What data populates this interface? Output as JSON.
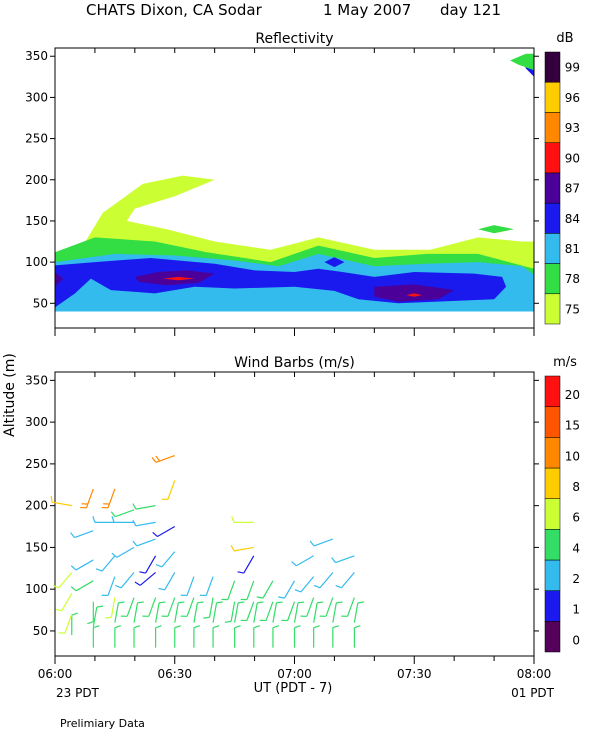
{
  "header": {
    "site": "CHATS Dixon, CA  Sodar",
    "date": "1 May 2007",
    "day": "day 121"
  },
  "footer": {
    "x_axis_label": "UT  (PDT - 7)",
    "left_time_label": "23 PDT",
    "right_time_label": "01 PDT",
    "note": "Prelimiary Data"
  },
  "y_axis_label": "Altitude (m)",
  "chart_data": [
    {
      "type": "heatmap",
      "title": "Reflectivity",
      "xlabel": "",
      "ylabel": "Altitude (m)",
      "ylim": [
        20,
        360
      ],
      "yticks": [
        50,
        100,
        150,
        200,
        250,
        300,
        350
      ],
      "colorbar_unit": "dB",
      "colorbar_levels": [
        75,
        78,
        81,
        84,
        87,
        90,
        93,
        96,
        99
      ],
      "colorbar_colors": [
        "#ccff33",
        "#33dd44",
        "#33bbee",
        "#1a1aee",
        "#4a0099",
        "#ff1111",
        "#ff8800",
        "#ffcc00",
        "#33003d"
      ],
      "regions": [
        {
          "level": 75,
          "points": [
            [
              0.0,
              105
            ],
            [
              0.7,
              120
            ],
            [
              1.2,
              160
            ],
            [
              2.2,
              195
            ],
            [
              3.2,
              205
            ],
            [
              4.0,
              200
            ],
            [
              3.0,
              180
            ],
            [
              2.0,
              165
            ],
            [
              1.8,
              150
            ],
            [
              2.8,
              140
            ],
            [
              4.0,
              125
            ],
            [
              5.4,
              115
            ],
            [
              6.6,
              130
            ],
            [
              8.0,
              115
            ],
            [
              9.4,
              115
            ],
            [
              10.6,
              130
            ],
            [
              11.7,
              125
            ],
            [
              12.0,
              125
            ],
            [
              12.0,
              70
            ],
            [
              10.6,
              80
            ],
            [
              8.0,
              85
            ],
            [
              5.4,
              90
            ],
            [
              3.0,
              95
            ],
            [
              0.0,
              95
            ]
          ]
        },
        {
          "level": 78,
          "points": [
            [
              0.0,
              112
            ],
            [
              1.0,
              130
            ],
            [
              2.5,
              125
            ],
            [
              3.8,
              112
            ],
            [
              5.4,
              100
            ],
            [
              6.6,
              120
            ],
            [
              8.0,
              105
            ],
            [
              9.3,
              110
            ],
            [
              10.6,
              110
            ],
            [
              12.0,
              92
            ],
            [
              12.0,
              45
            ],
            [
              10.5,
              48
            ],
            [
              8.5,
              45
            ],
            [
              7.2,
              52
            ],
            [
              5.4,
              62
            ],
            [
              3.5,
              75
            ],
            [
              1.5,
              88
            ],
            [
              0.0,
              90
            ]
          ]
        },
        {
          "level": 81,
          "points": [
            [
              0.0,
              100
            ],
            [
              1.5,
              110
            ],
            [
              3.0,
              108
            ],
            [
              4.5,
              102
            ],
            [
              5.6,
              95
            ],
            [
              6.6,
              110
            ],
            [
              8.0,
              95
            ],
            [
              9.3,
              98
            ],
            [
              10.6,
              100
            ],
            [
              11.7,
              95
            ],
            [
              12.0,
              85
            ],
            [
              12.0,
              40
            ],
            [
              0.0,
              40
            ]
          ]
        },
        {
          "level": 84,
          "points": [
            [
              0.0,
              96
            ],
            [
              1.0,
              100
            ],
            [
              2.4,
              105
            ],
            [
              4.0,
              98
            ],
            [
              5.0,
              90
            ],
            [
              6.0,
              88
            ],
            [
              6.6,
              92
            ],
            [
              7.2,
              88
            ],
            [
              8.0,
              82
            ],
            [
              9.0,
              88
            ],
            [
              10.5,
              86
            ],
            [
              11.2,
              82
            ],
            [
              11.3,
              70
            ],
            [
              11.0,
              55
            ],
            [
              8.6,
              50
            ],
            [
              7.6,
              55
            ],
            [
              7.0,
              65
            ],
            [
              6.0,
              70
            ],
            [
              4.5,
              68
            ],
            [
              3.5,
              70
            ],
            [
              2.5,
              62
            ],
            [
              1.4,
              66
            ],
            [
              0.9,
              80
            ],
            [
              0.5,
              62
            ],
            [
              0.0,
              45
            ]
          ]
        },
        {
          "level": 87,
          "points": [
            [
              2.0,
              82
            ],
            [
              2.6,
              88
            ],
            [
              3.3,
              90
            ],
            [
              4.0,
              86
            ],
            [
              3.6,
              75
            ],
            [
              2.8,
              72
            ],
            [
              2.1,
              76
            ]
          ]
        },
        {
          "level": 87,
          "points": [
            [
              0.0,
              88
            ],
            [
              0.2,
              80
            ],
            [
              0.0,
              70
            ]
          ]
        },
        {
          "level": 87,
          "points": [
            [
              8.0,
              70
            ],
            [
              9.0,
              73
            ],
            [
              10.0,
              66
            ],
            [
              9.6,
              55
            ],
            [
              8.6,
              52
            ],
            [
              8.0,
              58
            ]
          ]
        },
        {
          "level": 84,
          "points": [
            [
              6.75,
              100
            ],
            [
              7.0,
              106
            ],
            [
              7.25,
              100
            ],
            [
              7.0,
              94
            ]
          ]
        },
        {
          "level": 78,
          "points": [
            [
              10.6,
              140
            ],
            [
              11.0,
              145
            ],
            [
              11.5,
              140
            ],
            [
              11.0,
              135
            ]
          ]
        },
        {
          "level": 87,
          "points": [
            [
              11.9,
              340
            ],
            [
              12.0,
              345
            ],
            [
              12.0,
              335
            ]
          ]
        },
        {
          "level": 84,
          "points": [
            [
              11.7,
              345
            ],
            [
              12.0,
              352
            ],
            [
              12.0,
              325
            ],
            [
              11.8,
              335
            ]
          ]
        },
        {
          "level": 78,
          "points": [
            [
              11.4,
              345
            ],
            [
              11.8,
              353
            ],
            [
              12.0,
              353
            ],
            [
              12.0,
              333
            ],
            [
              11.6,
              340
            ]
          ]
        },
        {
          "level": 90,
          "points": [
            [
              2.7,
              80
            ],
            [
              3.1,
              82
            ],
            [
              3.5,
              80
            ],
            [
              3.1,
              78
            ]
          ]
        },
        {
          "level": 90,
          "points": [
            [
              8.8,
              60
            ],
            [
              9.0,
              62
            ],
            [
              9.2,
              60
            ],
            [
              9.0,
              58
            ]
          ]
        }
      ]
    },
    {
      "type": "scatter",
      "title": "Wind Barbs (m/s)",
      "xlabel": "UT  (PDT - 7)",
      "ylabel": "Altitude (m)",
      "ylim": [
        20,
        360
      ],
      "yticks": [
        50,
        100,
        150,
        200,
        250,
        300,
        350
      ],
      "xlim": [
        6.0,
        8.0
      ],
      "xtick_labels": [
        "06:00",
        "06:30",
        "07:00",
        "07:30",
        "08:00"
      ],
      "colorbar_unit": "m/s",
      "colorbar_levels": [
        0,
        1,
        2,
        4,
        6,
        8,
        10,
        15,
        20
      ],
      "colorbar_colors": [
        "#55005a",
        "#1a1aee",
        "#33bbee",
        "#33dd66",
        "#ccff33",
        "#ffcc00",
        "#ff8800",
        "#ff5500",
        "#ff1111"
      ],
      "barbs": [
        {
          "t": 6.07,
          "z": 45,
          "speed": 5,
          "dir": 0
        },
        {
          "t": 6.07,
          "z": 70,
          "speed": 6,
          "dir": 200
        },
        {
          "t": 6.07,
          "z": 95,
          "speed": 6,
          "dir": 210
        },
        {
          "t": 6.07,
          "z": 120,
          "speed": 6,
          "dir": 220
        },
        {
          "t": 6.07,
          "z": 200,
          "speed": 8,
          "dir": 280
        },
        {
          "t": 6.16,
          "z": 30,
          "speed": 5,
          "dir": 0
        },
        {
          "t": 6.16,
          "z": 55,
          "speed": 5,
          "dir": 10
        },
        {
          "t": 6.16,
          "z": 85,
          "speed": 5,
          "dir": 180
        },
        {
          "t": 6.16,
          "z": 110,
          "speed": 4,
          "dir": 240
        },
        {
          "t": 6.16,
          "z": 135,
          "speed": 3,
          "dir": 240
        },
        {
          "t": 6.16,
          "z": 170,
          "speed": 3,
          "dir": 250
        },
        {
          "t": 6.16,
          "z": 220,
          "speed": 12,
          "dir": 200
        },
        {
          "t": 6.25,
          "z": 30,
          "speed": 5,
          "dir": 0
        },
        {
          "t": 6.25,
          "z": 60,
          "speed": 5,
          "dir": 10
        },
        {
          "t": 6.25,
          "z": 90,
          "speed": 6,
          "dir": 190
        },
        {
          "t": 6.25,
          "z": 115,
          "speed": 3,
          "dir": 200
        },
        {
          "t": 6.25,
          "z": 140,
          "speed": 3,
          "dir": 220
        },
        {
          "t": 6.25,
          "z": 180,
          "speed": 3,
          "dir": 270
        },
        {
          "t": 6.25,
          "z": 220,
          "speed": 12,
          "dir": 200
        },
        {
          "t": 6.33,
          "z": 30,
          "speed": 5,
          "dir": 0
        },
        {
          "t": 6.33,
          "z": 60,
          "speed": 5,
          "dir": 10
        },
        {
          "t": 6.33,
          "z": 90,
          "speed": 4,
          "dir": 200
        },
        {
          "t": 6.33,
          "z": 120,
          "speed": 3,
          "dir": 220
        },
        {
          "t": 6.33,
          "z": 150,
          "speed": 3,
          "dir": 240
        },
        {
          "t": 6.33,
          "z": 180,
          "speed": 3,
          "dir": 270
        },
        {
          "t": 6.33,
          "z": 195,
          "speed": 4,
          "dir": 250
        },
        {
          "t": 6.42,
          "z": 30,
          "speed": 5,
          "dir": 0
        },
        {
          "t": 6.42,
          "z": 60,
          "speed": 5,
          "dir": 10
        },
        {
          "t": 6.42,
          "z": 90,
          "speed": 4,
          "dir": 200
        },
        {
          "t": 6.42,
          "z": 120,
          "speed": 1,
          "dir": 230
        },
        {
          "t": 6.42,
          "z": 140,
          "speed": 1,
          "dir": 210
        },
        {
          "t": 6.42,
          "z": 160,
          "speed": 3,
          "dir": 250
        },
        {
          "t": 6.42,
          "z": 180,
          "speed": 3,
          "dir": 260
        },
        {
          "t": 6.42,
          "z": 200,
          "speed": 4,
          "dir": 260
        },
        {
          "t": 6.5,
          "z": 30,
          "speed": 5,
          "dir": 0
        },
        {
          "t": 6.5,
          "z": 60,
          "speed": 5,
          "dir": 10
        },
        {
          "t": 6.5,
          "z": 90,
          "speed": 4,
          "dir": 200
        },
        {
          "t": 6.5,
          "z": 120,
          "speed": 3,
          "dir": 210
        },
        {
          "t": 6.5,
          "z": 145,
          "speed": 3,
          "dir": 220
        },
        {
          "t": 6.5,
          "z": 175,
          "speed": 1,
          "dir": 240
        },
        {
          "t": 6.5,
          "z": 230,
          "speed": 8,
          "dir": 200
        },
        {
          "t": 6.5,
          "z": 260,
          "speed": 12,
          "dir": 250
        },
        {
          "t": 6.58,
          "z": 30,
          "speed": 5,
          "dir": 0
        },
        {
          "t": 6.58,
          "z": 60,
          "speed": 5,
          "dir": 10
        },
        {
          "t": 6.58,
          "z": 90,
          "speed": 4,
          "dir": 200
        },
        {
          "t": 6.58,
          "z": 115,
          "speed": 3,
          "dir": 200
        },
        {
          "t": 6.66,
          "z": 30,
          "speed": 5,
          "dir": 0
        },
        {
          "t": 6.66,
          "z": 60,
          "speed": 5,
          "dir": 10
        },
        {
          "t": 6.66,
          "z": 90,
          "speed": 4,
          "dir": 190
        },
        {
          "t": 6.66,
          "z": 115,
          "speed": 3,
          "dir": 200
        },
        {
          "t": 6.75,
          "z": 30,
          "speed": 5,
          "dir": 0
        },
        {
          "t": 6.75,
          "z": 60,
          "speed": 5,
          "dir": 10
        },
        {
          "t": 6.75,
          "z": 85,
          "speed": 4,
          "dir": 190
        },
        {
          "t": 6.75,
          "z": 110,
          "speed": 4,
          "dir": 200
        },
        {
          "t": 6.83,
          "z": 30,
          "speed": 5,
          "dir": 0
        },
        {
          "t": 6.83,
          "z": 60,
          "speed": 5,
          "dir": 10
        },
        {
          "t": 6.83,
          "z": 85,
          "speed": 4,
          "dir": 200
        },
        {
          "t": 6.83,
          "z": 110,
          "speed": 4,
          "dir": 200
        },
        {
          "t": 6.83,
          "z": 140,
          "speed": 1,
          "dir": 210
        },
        {
          "t": 6.83,
          "z": 150,
          "speed": 8,
          "dir": 260
        },
        {
          "t": 6.83,
          "z": 180,
          "speed": 6,
          "dir": 270
        },
        {
          "t": 6.91,
          "z": 30,
          "speed": 5,
          "dir": 0
        },
        {
          "t": 6.91,
          "z": 60,
          "speed": 5,
          "dir": 10
        },
        {
          "t": 6.91,
          "z": 85,
          "speed": 4,
          "dir": 200
        },
        {
          "t": 6.91,
          "z": 110,
          "speed": 4,
          "dir": 210
        },
        {
          "t": 7.0,
          "z": 30,
          "speed": 5,
          "dir": 0
        },
        {
          "t": 7.0,
          "z": 60,
          "speed": 5,
          "dir": 10
        },
        {
          "t": 7.0,
          "z": 85,
          "speed": 4,
          "dir": 200
        },
        {
          "t": 7.0,
          "z": 110,
          "speed": 3,
          "dir": 210
        },
        {
          "t": 7.08,
          "z": 30,
          "speed": 5,
          "dir": 0
        },
        {
          "t": 7.08,
          "z": 60,
          "speed": 5,
          "dir": 10
        },
        {
          "t": 7.08,
          "z": 90,
          "speed": 4,
          "dir": 200
        },
        {
          "t": 7.08,
          "z": 115,
          "speed": 3,
          "dir": 220
        },
        {
          "t": 7.08,
          "z": 140,
          "speed": 3,
          "dir": 240
        },
        {
          "t": 7.16,
          "z": 30,
          "speed": 5,
          "dir": 0
        },
        {
          "t": 7.16,
          "z": 60,
          "speed": 5,
          "dir": 10
        },
        {
          "t": 7.16,
          "z": 90,
          "speed": 4,
          "dir": 200
        },
        {
          "t": 7.16,
          "z": 120,
          "speed": 3,
          "dir": 220
        },
        {
          "t": 7.16,
          "z": 160,
          "speed": 3,
          "dir": 250
        },
        {
          "t": 7.25,
          "z": 30,
          "speed": 5,
          "dir": 0
        },
        {
          "t": 7.25,
          "z": 60,
          "speed": 5,
          "dir": 10
        },
        {
          "t": 7.25,
          "z": 90,
          "speed": 4,
          "dir": 200
        },
        {
          "t": 7.25,
          "z": 120,
          "speed": 3,
          "dir": 220
        },
        {
          "t": 7.25,
          "z": 140,
          "speed": 3,
          "dir": 250
        }
      ]
    }
  ]
}
